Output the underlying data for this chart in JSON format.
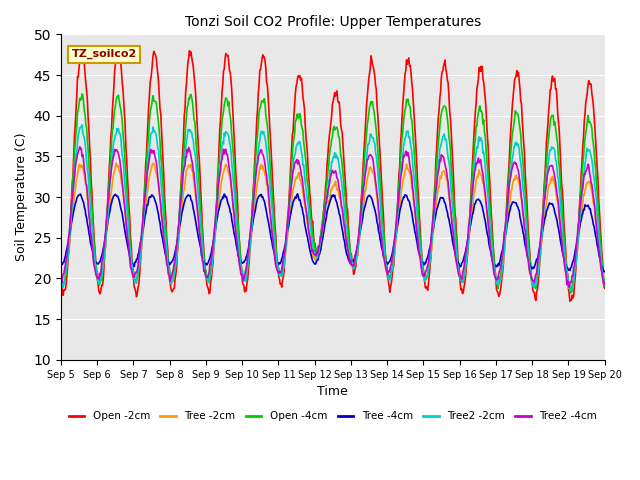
{
  "title": "Tonzi Soil CO2 Profile: Upper Temperatures",
  "xlabel": "Time",
  "ylabel": "Soil Temperature (C)",
  "ylim": [
    10,
    50
  ],
  "yticks": [
    10,
    15,
    20,
    25,
    30,
    35,
    40,
    45,
    50
  ],
  "x_labels": [
    "Sep 5",
    "Sep 6",
    "Sep 7",
    "Sep 8",
    "Sep 9",
    "Sep 10",
    "Sep 11",
    "Sep 12",
    "Sep 13",
    "Sep 14",
    "Sep 15",
    "Sep 16",
    "Sep 17",
    "Sep 18",
    "Sep 19",
    "Sep 20"
  ],
  "annotation_text": "TZ_soilco2",
  "annotation_facecolor": "#ffffcc",
  "annotation_edgecolor": "#cc9900",
  "background_color": "#e8e8e8",
  "series": {
    "Open -2cm": {
      "color": "#ff0000",
      "lw": 1.2
    },
    "Tree -2cm": {
      "color": "#ff9900",
      "lw": 1.2
    },
    "Open -4cm": {
      "color": "#00cc00",
      "lw": 1.2
    },
    "Tree -4cm": {
      "color": "#0000cc",
      "lw": 1.2
    },
    "Tree2 -2cm": {
      "color": "#00cccc",
      "lw": 1.2
    },
    "Tree2 -4cm": {
      "color": "#cc00cc",
      "lw": 1.2
    }
  },
  "num_days": 15,
  "points_per_day": 48,
  "figsize": [
    6.4,
    4.8
  ],
  "dpi": 100
}
